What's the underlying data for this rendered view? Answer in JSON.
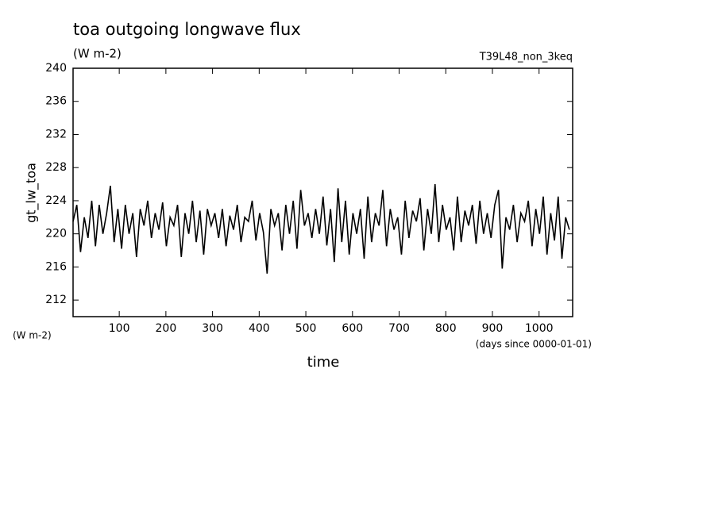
{
  "chart_data": {
    "type": "line",
    "title": "toa outgoing longwave flux",
    "subtitle": "(W m-2)",
    "annotation": "T39L48_non_3keq",
    "ylabel": "gt_lw_toa",
    "yunit": "(W m-2)",
    "xlabel": "time",
    "xunit": "(days since 0000-01-01)",
    "xlim": [
      1,
      1072
    ],
    "ylim": [
      210,
      240
    ],
    "xticks": [
      100,
      200,
      300,
      400,
      500,
      600,
      700,
      800,
      900,
      1000
    ],
    "yticks": [
      212,
      216,
      220,
      224,
      228,
      232,
      236,
      240
    ],
    "x": [
      1,
      9,
      17,
      25,
      33,
      41,
      49,
      57,
      65,
      73,
      81,
      89,
      97,
      105,
      113,
      121,
      129,
      137,
      145,
      153,
      161,
      169,
      177,
      185,
      193,
      201,
      209,
      217,
      225,
      233,
      241,
      249,
      257,
      265,
      273,
      281,
      289,
      297,
      305,
      313,
      321,
      329,
      337,
      345,
      353,
      361,
      369,
      377,
      385,
      393,
      401,
      409,
      417,
      425,
      433,
      441,
      449,
      457,
      465,
      473,
      481,
      489,
      497,
      505,
      513,
      521,
      529,
      537,
      545,
      553,
      561,
      569,
      577,
      585,
      593,
      601,
      609,
      617,
      625,
      633,
      641,
      649,
      657,
      665,
      673,
      681,
      689,
      697,
      705,
      713,
      721,
      729,
      737,
      745,
      753,
      761,
      769,
      777,
      785,
      793,
      801,
      809,
      817,
      825,
      833,
      841,
      849,
      857,
      865,
      873,
      881,
      889,
      897,
      905,
      913,
      921,
      929,
      937,
      945,
      953,
      961,
      969,
      977,
      985,
      993,
      1001,
      1009,
      1017,
      1025,
      1033,
      1041,
      1049,
      1057,
      1065
    ],
    "series": [
      {
        "color": "#000000",
        "values": [
          221.5,
          223.5,
          217.8,
          222,
          219.5,
          224,
          218.5,
          223.5,
          220,
          222.5,
          225.8,
          219,
          223,
          218.2,
          223.5,
          220,
          222.5,
          217.2,
          223,
          221,
          224,
          219.5,
          222.5,
          220.5,
          223.8,
          218.5,
          222,
          221,
          223.5,
          217.2,
          222.5,
          220,
          224,
          219,
          222.8,
          217.5,
          223,
          221,
          222.5,
          219.5,
          223,
          218.5,
          222.2,
          220.5,
          223.5,
          219,
          222,
          221.5,
          224,
          219.2,
          222.5,
          220.2,
          215.2,
          223,
          221,
          222.5,
          218,
          223.5,
          220,
          224,
          218.2,
          225.3,
          221,
          222.5,
          219.5,
          223,
          220,
          224.5,
          218.6,
          223,
          216.6,
          225.5,
          219,
          224,
          217.5,
          222.5,
          220,
          223,
          217,
          224.5,
          219,
          222.5,
          221,
          225.3,
          218.5,
          223,
          220.5,
          222,
          217.5,
          224,
          219.5,
          222.8,
          221.5,
          224.3,
          218,
          223,
          220,
          226,
          219,
          223.5,
          220.5,
          222,
          218,
          224.5,
          219,
          222.8,
          221,
          223.5,
          218.8,
          224,
          220,
          222.5,
          219.5,
          223.5,
          225.3,
          215.8,
          222,
          220.5,
          223.5,
          219,
          222.5,
          221.5,
          224,
          218.5,
          223,
          220,
          224.5,
          217.5,
          222.5,
          219.2,
          224.5,
          217,
          222,
          220.5
        ]
      }
    ]
  }
}
